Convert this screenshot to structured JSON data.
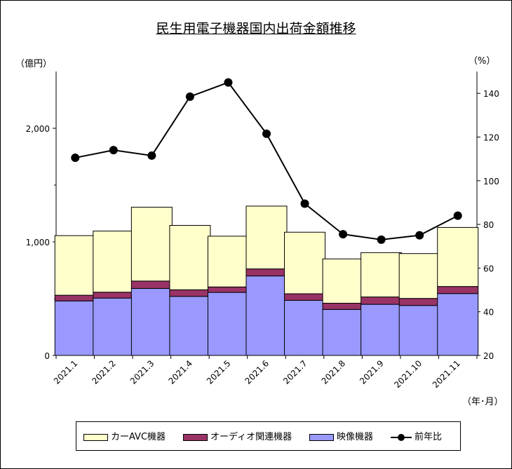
{
  "title": "民生用電子機器国内出荷金額推移",
  "units": {
    "left": "（億円）",
    "right": "（%）",
    "x": "（年･月）"
  },
  "colors": {
    "car_avc": "#FFFFCC",
    "audio": "#993366",
    "video": "#9999FF",
    "line": "#000000"
  },
  "legend": {
    "car_avc": "カーAVC機器",
    "audio": "オーディオ関連機器",
    "video": "映像機器",
    "line": "前年比"
  },
  "chart_data": {
    "type": "bar",
    "stacked": true,
    "title": "民生用電子機器国内出荷金額推移",
    "xlabel": "（年･月）",
    "ylabel": "（億円）",
    "y2label": "（%）",
    "categories": [
      "2021.1",
      "2021.2",
      "2021.3",
      "2021.4",
      "2021.5",
      "2021.6",
      "2021.7",
      "2021.8",
      "2021.9",
      "2021.10",
      "2021.11"
    ],
    "ylim": [
      0,
      2500
    ],
    "yticks": [
      0,
      1000,
      2000
    ],
    "ytick_labels": [
      "0",
      "1,000",
      "2,000"
    ],
    "y2lim": [
      20,
      150
    ],
    "y2ticks": [
      20,
      40,
      60,
      80,
      100,
      120,
      140
    ],
    "series": [
      {
        "name": "映像機器",
        "key": "video",
        "values": [
          480,
          505,
          590,
          520,
          555,
          700,
          485,
          405,
          450,
          440,
          545
        ]
      },
      {
        "name": "オーディオ関連機器",
        "key": "audio",
        "values": [
          50,
          52,
          65,
          58,
          48,
          62,
          58,
          55,
          65,
          62,
          62
        ]
      },
      {
        "name": "カーAVC機器",
        "key": "car_avc",
        "values": [
          525,
          538,
          650,
          567,
          447,
          553,
          542,
          390,
          390,
          395,
          520
        ]
      }
    ],
    "line_series": {
      "name": "前年比",
      "axis": "right",
      "values": [
        110.5,
        114,
        111.5,
        138.5,
        145,
        121.5,
        89.5,
        75.5,
        73,
        75,
        84
      ]
    },
    "grid": false,
    "legend_position": "bottom"
  }
}
